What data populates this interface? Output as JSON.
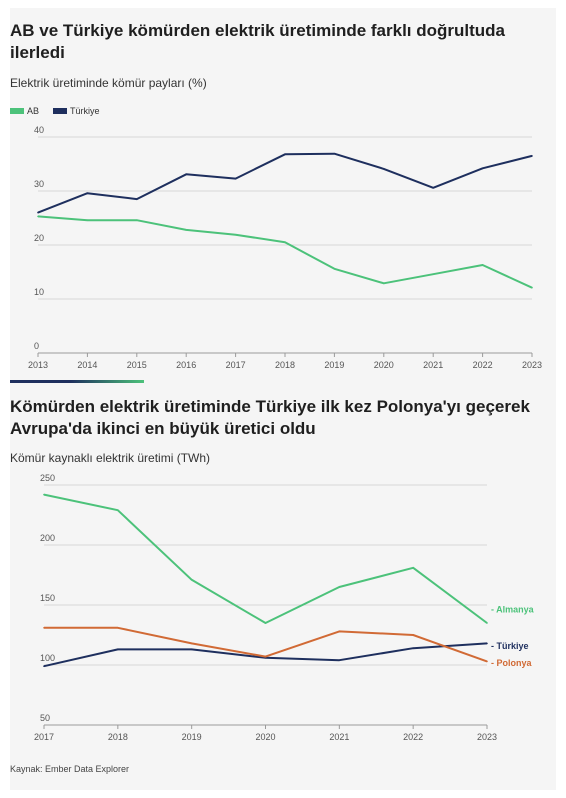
{
  "chart1": {
    "title": "AB ve Türkiye kömürden elektrik üretiminde farklı doğrultuda ilerledi",
    "subtitle": "Elektrik üretiminde kömür payları (%)",
    "legend": [
      {
        "name": "AB",
        "color": "#4cc27a"
      },
      {
        "name": "Türkiye",
        "color": "#1e2f5e"
      }
    ]
  },
  "chart2": {
    "title": "Kömürden elektrik üretiminde Türkiye ilk kez Polonya'yı geçerek Avrupa'da ikinci en büyük üretici oldu",
    "subtitle": "Kömür kaynaklı elektrik üretimi (TWh)"
  },
  "source": "Kaynak: Ember Data Explorer",
  "chart_data": [
    {
      "type": "line",
      "title": "AB ve Türkiye kömürden elektrik üretiminde farklı doğrultuda ilerledi",
      "subtitle": "Elektrik üretiminde kömür payları (%)",
      "x": [
        2013,
        2014,
        2015,
        2016,
        2017,
        2018,
        2019,
        2020,
        2021,
        2022,
        2023
      ],
      "ylim": [
        0,
        40
      ],
      "yticks": [
        0,
        10,
        20,
        30,
        40
      ],
      "grid": true,
      "legend": "top-left",
      "series": [
        {
          "name": "AB",
          "color": "#4cc27a",
          "values": [
            25.3,
            24.6,
            24.6,
            22.8,
            21.9,
            20.5,
            15.6,
            12.9,
            14.6,
            16.3,
            12.1
          ]
        },
        {
          "name": "Türkiye",
          "color": "#1e2f5e",
          "values": [
            26.0,
            29.6,
            28.5,
            33.1,
            32.3,
            36.8,
            36.9,
            34.1,
            30.6,
            34.2,
            36.5
          ]
        }
      ]
    },
    {
      "type": "line",
      "title": "Kömürden elektrik üretiminde Türkiye ilk kez Polonya'yı geçerek Avrupa'da ikinci en büyük üretici oldu",
      "subtitle": "Kömür kaynaklı elektrik üretimi (TWh)",
      "x": [
        2017,
        2018,
        2019,
        2020,
        2021,
        2022,
        2023
      ],
      "ylim": [
        50,
        250
      ],
      "yticks": [
        50,
        100,
        150,
        200,
        250
      ],
      "grid": true,
      "legend": "line-end labels",
      "series": [
        {
          "name": "Almanya",
          "color": "#4cc27a",
          "values": [
            242,
            229,
            171,
            135,
            165,
            181,
            135
          ]
        },
        {
          "name": "Türkiye",
          "color": "#1e2f5e",
          "values": [
            99,
            113,
            113,
            106,
            104,
            114,
            118
          ]
        },
        {
          "name": "Polonya",
          "color": "#d16a35",
          "values": [
            131,
            131,
            118,
            107,
            128,
            125,
            103
          ]
        }
      ]
    }
  ]
}
